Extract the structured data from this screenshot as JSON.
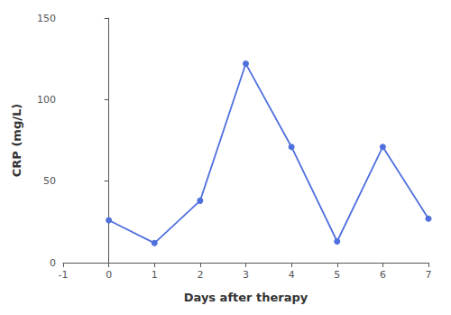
{
  "chart_data": {
    "type": "line",
    "x": [
      0,
      1,
      2,
      3,
      4,
      5,
      6,
      7
    ],
    "values": [
      26,
      12,
      38,
      122,
      71,
      13,
      71,
      27
    ],
    "xlabel": "Days after therapy",
    "ylabel": "CRP (mg/L)",
    "xlim": [
      -1,
      7
    ],
    "xticks": [
      -1,
      0,
      1,
      2,
      3,
      4,
      5,
      6,
      7
    ],
    "ylim": [
      0,
      150
    ],
    "yticks": [
      0,
      50,
      100,
      150
    ],
    "marker": "circle",
    "grid": false
  }
}
